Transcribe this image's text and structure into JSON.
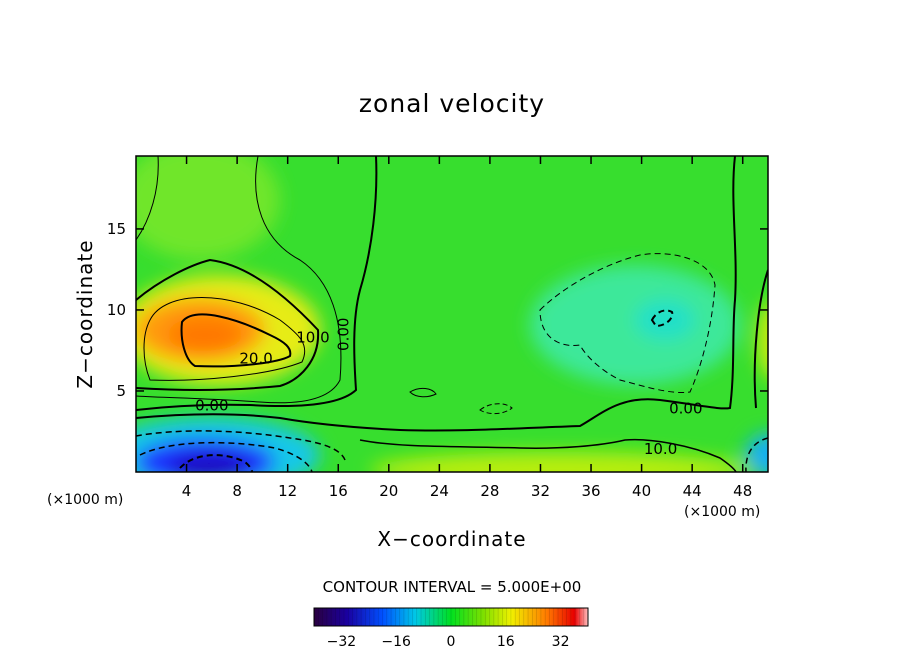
{
  "chart_data": {
    "type": "heatmap",
    "title": "zonal velocity",
    "xlabel": "X−coordinate",
    "ylabel": "Z−coordinate",
    "x_unit_label": "(×1000 m)",
    "x_unit_label_right": "(×1000 m)",
    "xlim": [
      0,
      50
    ],
    "ylim": [
      0,
      19.5
    ],
    "x_ticks": [
      4,
      8,
      12,
      16,
      20,
      24,
      28,
      32,
      36,
      40,
      44,
      48
    ],
    "y_ticks": [
      5,
      10,
      15
    ],
    "contour_interval_text": "CONTOUR INTERVAL = 5.000E+00",
    "contour_labels": [
      {
        "text": "20.0",
        "x": 9.5,
        "y": 6.7
      },
      {
        "text": "10.0",
        "x": 14,
        "y": 8.0
      },
      {
        "text": "0.00",
        "x": 16.8,
        "y": 8.5
      },
      {
        "text": "0.00",
        "x": 6,
        "y": 3.8
      },
      {
        "text": "0.00",
        "x": 43.5,
        "y": 3.6
      },
      {
        "text": "10.0",
        "x": 41.5,
        "y": 1.1
      }
    ],
    "features": [
      {
        "name": "upper-left jet",
        "x": 7,
        "z": 8.5,
        "value": 24
      },
      {
        "name": "surface reversed flow",
        "x": 5,
        "z": 0.5,
        "value": -22
      },
      {
        "name": "negative region",
        "x": 40,
        "z": 9,
        "value": -3
      },
      {
        "name": "near-surface positive band",
        "x": 36,
        "z": 0.5,
        "value": 10
      }
    ],
    "colorbar": {
      "range": [
        -40,
        40
      ],
      "ticks": [
        -32,
        -16,
        0,
        16,
        32
      ],
      "tick_labels": [
        "−32",
        "−16",
        "0",
        "16",
        "32"
      ]
    }
  }
}
